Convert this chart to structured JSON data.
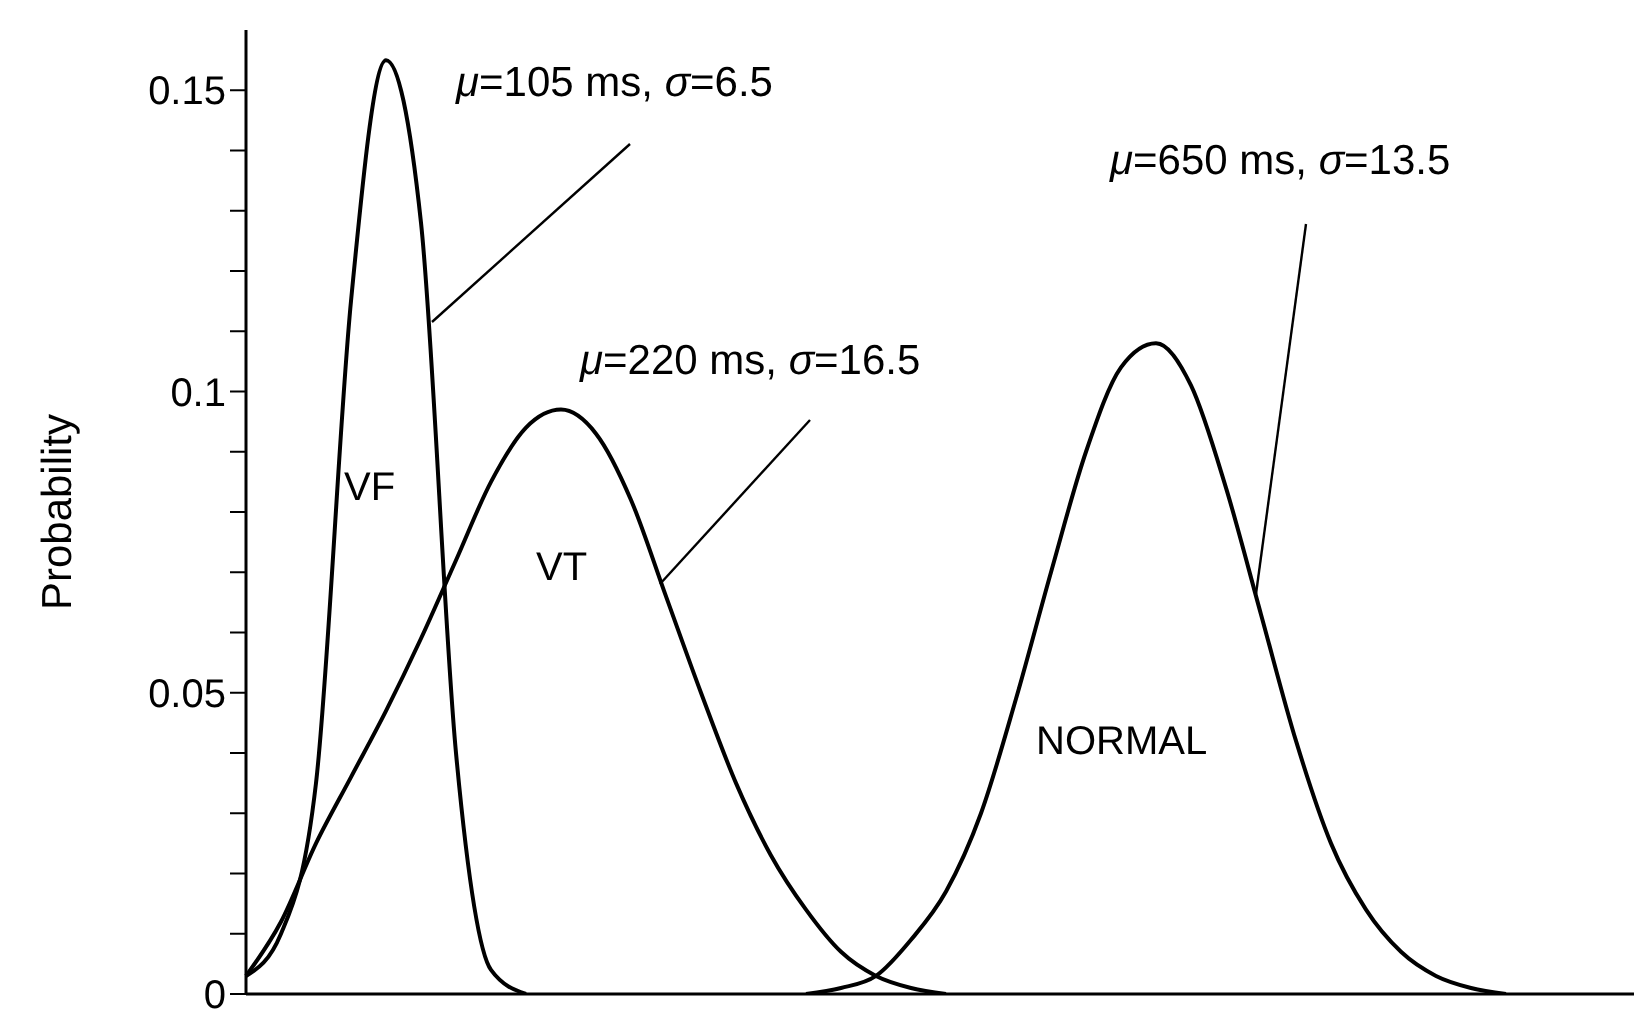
{
  "chart_data": {
    "type": "line",
    "ylabel": "Probability",
    "categories": [
      null,
      null,
      null,
      null,
      null,
      null,
      null,
      null,
      null,
      null,
      null,
      null,
      null,
      null,
      null,
      null,
      null,
      null,
      null,
      null,
      null,
      null,
      null,
      null,
      null,
      null,
      null,
      null,
      null,
      null,
      null,
      null,
      null,
      null,
      null,
      null,
      null,
      null,
      null
    ],
    "series": [
      {
        "name": "VF",
        "color": "#000000",
        "values": [
          0.003,
          0.01,
          0.035,
          0.115,
          0.155,
          0.128,
          0.04,
          0.004,
          0.0,
          null,
          null,
          null,
          null,
          null,
          null,
          null,
          null,
          null,
          null,
          null,
          null,
          null,
          null,
          null,
          null,
          null,
          null,
          null,
          null,
          null,
          null,
          null,
          null,
          null,
          null,
          null,
          null,
          null,
          null
        ]
      },
      {
        "name": "VT",
        "color": "#000000",
        "values": [
          0.003,
          0.012,
          0.025,
          0.036,
          0.047,
          0.059,
          0.072,
          0.085,
          0.094,
          0.097,
          0.093,
          0.082,
          0.066,
          0.05,
          0.035,
          0.023,
          0.014,
          0.007,
          0.003,
          0.001,
          0.0,
          null,
          null,
          null,
          null,
          null,
          null,
          null,
          null,
          null,
          null,
          null,
          null,
          null,
          null,
          null,
          null,
          null,
          null
        ]
      },
      {
        "name": "NORMAL",
        "color": "#000000",
        "values": [
          null,
          null,
          null,
          null,
          null,
          null,
          null,
          null,
          null,
          null,
          null,
          null,
          null,
          null,
          null,
          null,
          0.0,
          0.001,
          0.003,
          0.009,
          0.017,
          0.03,
          0.049,
          0.07,
          0.09,
          0.104,
          0.108,
          0.101,
          0.084,
          0.063,
          0.042,
          0.025,
          0.014,
          0.007,
          0.003,
          0.001,
          0.0,
          null,
          null
        ]
      }
    ],
    "annotations": [
      "μ=105 ms, σ=6.5",
      "μ=220 ms, σ=16.5",
      "μ=650 ms, σ=13.5"
    ],
    "ylim": [
      0,
      0.16
    ],
    "yticks": [
      0,
      {
        "value": 0.01,
        "label": null
      },
      {
        "value": 0.02,
        "label": null
      },
      {
        "value": 0.03,
        "label": null
      },
      {
        "value": 0.04,
        "label": null
      },
      0.05,
      {
        "value": 0.06,
        "label": null
      },
      {
        "value": 0.07,
        "label": null
      },
      {
        "value": 0.08,
        "label": null
      },
      {
        "value": 0.09,
        "label": null
      },
      0.1,
      {
        "value": 0.11,
        "label": null
      },
      {
        "value": 0.12,
        "label": null
      },
      {
        "value": 0.13,
        "label": null
      },
      {
        "value": 0.14,
        "label": null
      },
      0.15
    ],
    "tick_labels": "y",
    "grid": false,
    "legend": false,
    "marker": "none",
    "line_style": "solid"
  }
}
